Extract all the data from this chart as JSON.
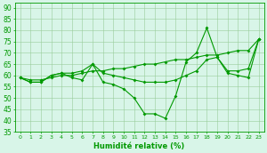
{
  "xlabel": "Humidité relative (%)",
  "bg_color": "#d8f5e8",
  "grid_color": "#99cc99",
  "line_color": "#009900",
  "x": [
    0,
    1,
    2,
    3,
    4,
    5,
    6,
    7,
    8,
    9,
    10,
    11,
    12,
    13,
    14,
    15,
    16,
    17,
    18,
    19,
    20,
    21,
    22,
    23
  ],
  "y_main": [
    59,
    57,
    57,
    60,
    61,
    59,
    58,
    65,
    57,
    56,
    54,
    50,
    43,
    43,
    41,
    51,
    66,
    70,
    81,
    68,
    61,
    60,
    59,
    76
  ],
  "y_upper": [
    59,
    58,
    58,
    59,
    60,
    60,
    61,
    62,
    62,
    63,
    63,
    64,
    65,
    65,
    66,
    67,
    67,
    68,
    69,
    69,
    70,
    71,
    71,
    76
  ],
  "y_mid": [
    59,
    57,
    57,
    60,
    61,
    61,
    62,
    65,
    61,
    60,
    59,
    58,
    57,
    57,
    57,
    58,
    60,
    62,
    67,
    68,
    62,
    62,
    63,
    76
  ],
  "ylim": [
    35,
    92
  ],
  "yticks": [
    35,
    40,
    45,
    50,
    55,
    60,
    65,
    70,
    75,
    80,
    85,
    90
  ],
  "xlim": [
    -0.5,
    23.5
  ],
  "figw": 3.0,
  "figh": 1.72,
  "dpi": 100
}
